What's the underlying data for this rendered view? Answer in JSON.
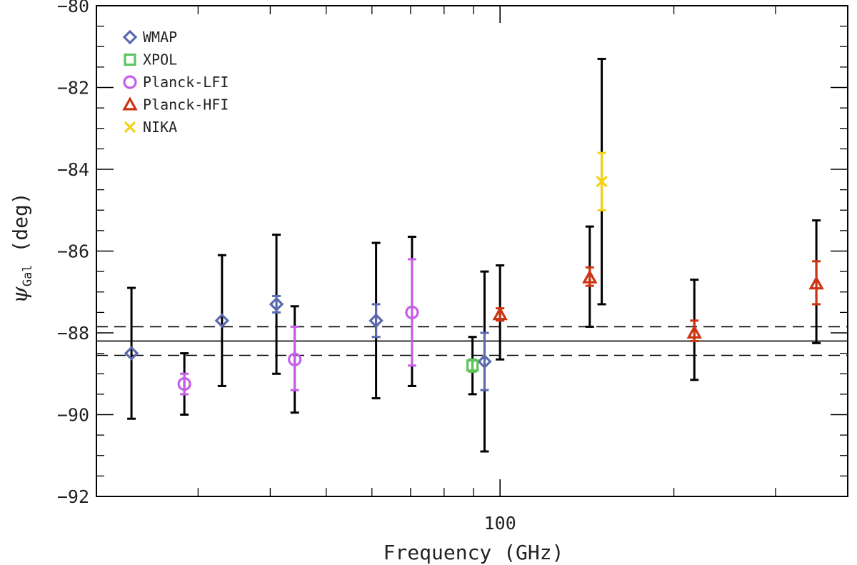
{
  "chart_data": {
    "type": "scatter",
    "title": "",
    "xlabel": "Frequency (GHz)",
    "ylabel_symbol": "ψ",
    "ylabel_subscript": "Gal",
    "ylabel_unit": "(deg)",
    "x_scale": "log",
    "xlim": [
      20,
      400
    ],
    "ylim": [
      -92,
      -80
    ],
    "x_ticks": [
      100
    ],
    "y_ticks": [
      -92,
      -90,
      -88,
      -86,
      -84,
      -82,
      -80
    ],
    "reference": {
      "mean": -88.2,
      "upper": -87.85,
      "lower": -88.55
    },
    "legend": [
      "WMAP",
      "XPOL",
      "Planck-LFI",
      "Planck-HFI",
      "NIKA"
    ],
    "legend_position": "top-left",
    "series": [
      {
        "name": "WMAP",
        "marker": "diamond",
        "color": "#5b6aae",
        "points": [
          {
            "x": 23,
            "y": -88.5,
            "stat_err": [
              -88.5,
              -88.5
            ],
            "total_err": [
              -90.1,
              -86.9
            ]
          },
          {
            "x": 33,
            "y": -87.7,
            "stat_err": [
              -87.7,
              -87.7
            ],
            "total_err": [
              -89.3,
              -86.1
            ]
          },
          {
            "x": 41,
            "y": -87.3,
            "stat_err": [
              -87.5,
              -87.1
            ],
            "total_err": [
              -89.0,
              -85.6
            ]
          },
          {
            "x": 61,
            "y": -87.7,
            "stat_err": [
              -88.1,
              -87.3
            ],
            "total_err": [
              -89.6,
              -85.8
            ]
          },
          {
            "x": 94,
            "y": -88.7,
            "stat_err": [
              -89.4,
              -88.0
            ],
            "total_err": [
              -90.9,
              -86.5
            ]
          }
        ]
      },
      {
        "name": "XPOL",
        "marker": "square",
        "color": "#5ec45e",
        "points": [
          {
            "x": 89.6,
            "y": -88.8,
            "stat_err": [
              -88.95,
              -88.65
            ],
            "total_err": [
              -89.5,
              -88.1
            ]
          }
        ]
      },
      {
        "name": "Planck-LFI",
        "marker": "circle",
        "color": "#c65ee8",
        "points": [
          {
            "x": 28.4,
            "y": -89.25,
            "stat_err": [
              -89.5,
              -89.0
            ],
            "total_err": [
              -90.0,
              -88.5
            ]
          },
          {
            "x": 44.1,
            "y": -88.65,
            "stat_err": [
              -89.4,
              -87.85
            ],
            "total_err": [
              -89.95,
              -87.35
            ]
          },
          {
            "x": 70.4,
            "y": -87.5,
            "stat_err": [
              -88.8,
              -86.2
            ],
            "total_err": [
              -89.3,
              -85.65
            ]
          }
        ]
      },
      {
        "name": "Planck-HFI",
        "marker": "triangle",
        "color": "#cc3311",
        "points": [
          {
            "x": 100,
            "y": -87.55,
            "stat_err": [
              -87.7,
              -87.4
            ],
            "total_err": [
              -88.65,
              -86.35
            ]
          },
          {
            "x": 143,
            "y": -86.65,
            "stat_err": [
              -86.85,
              -86.4
            ],
            "total_err": [
              -87.85,
              -85.4
            ]
          },
          {
            "x": 217,
            "y": -88.0,
            "stat_err": [
              -88.2,
              -87.7
            ],
            "total_err": [
              -89.15,
              -86.7
            ]
          },
          {
            "x": 353,
            "y": -86.8,
            "stat_err": [
              -87.3,
              -86.25
            ],
            "total_err": [
              -88.25,
              -85.25
            ]
          }
        ]
      },
      {
        "name": "NIKA",
        "marker": "cross",
        "color": "#f3d214",
        "points": [
          {
            "x": 150,
            "y": -84.3,
            "stat_err": [
              -85.0,
              -83.6
            ],
            "total_err": [
              -87.3,
              -81.3
            ]
          }
        ]
      }
    ]
  }
}
